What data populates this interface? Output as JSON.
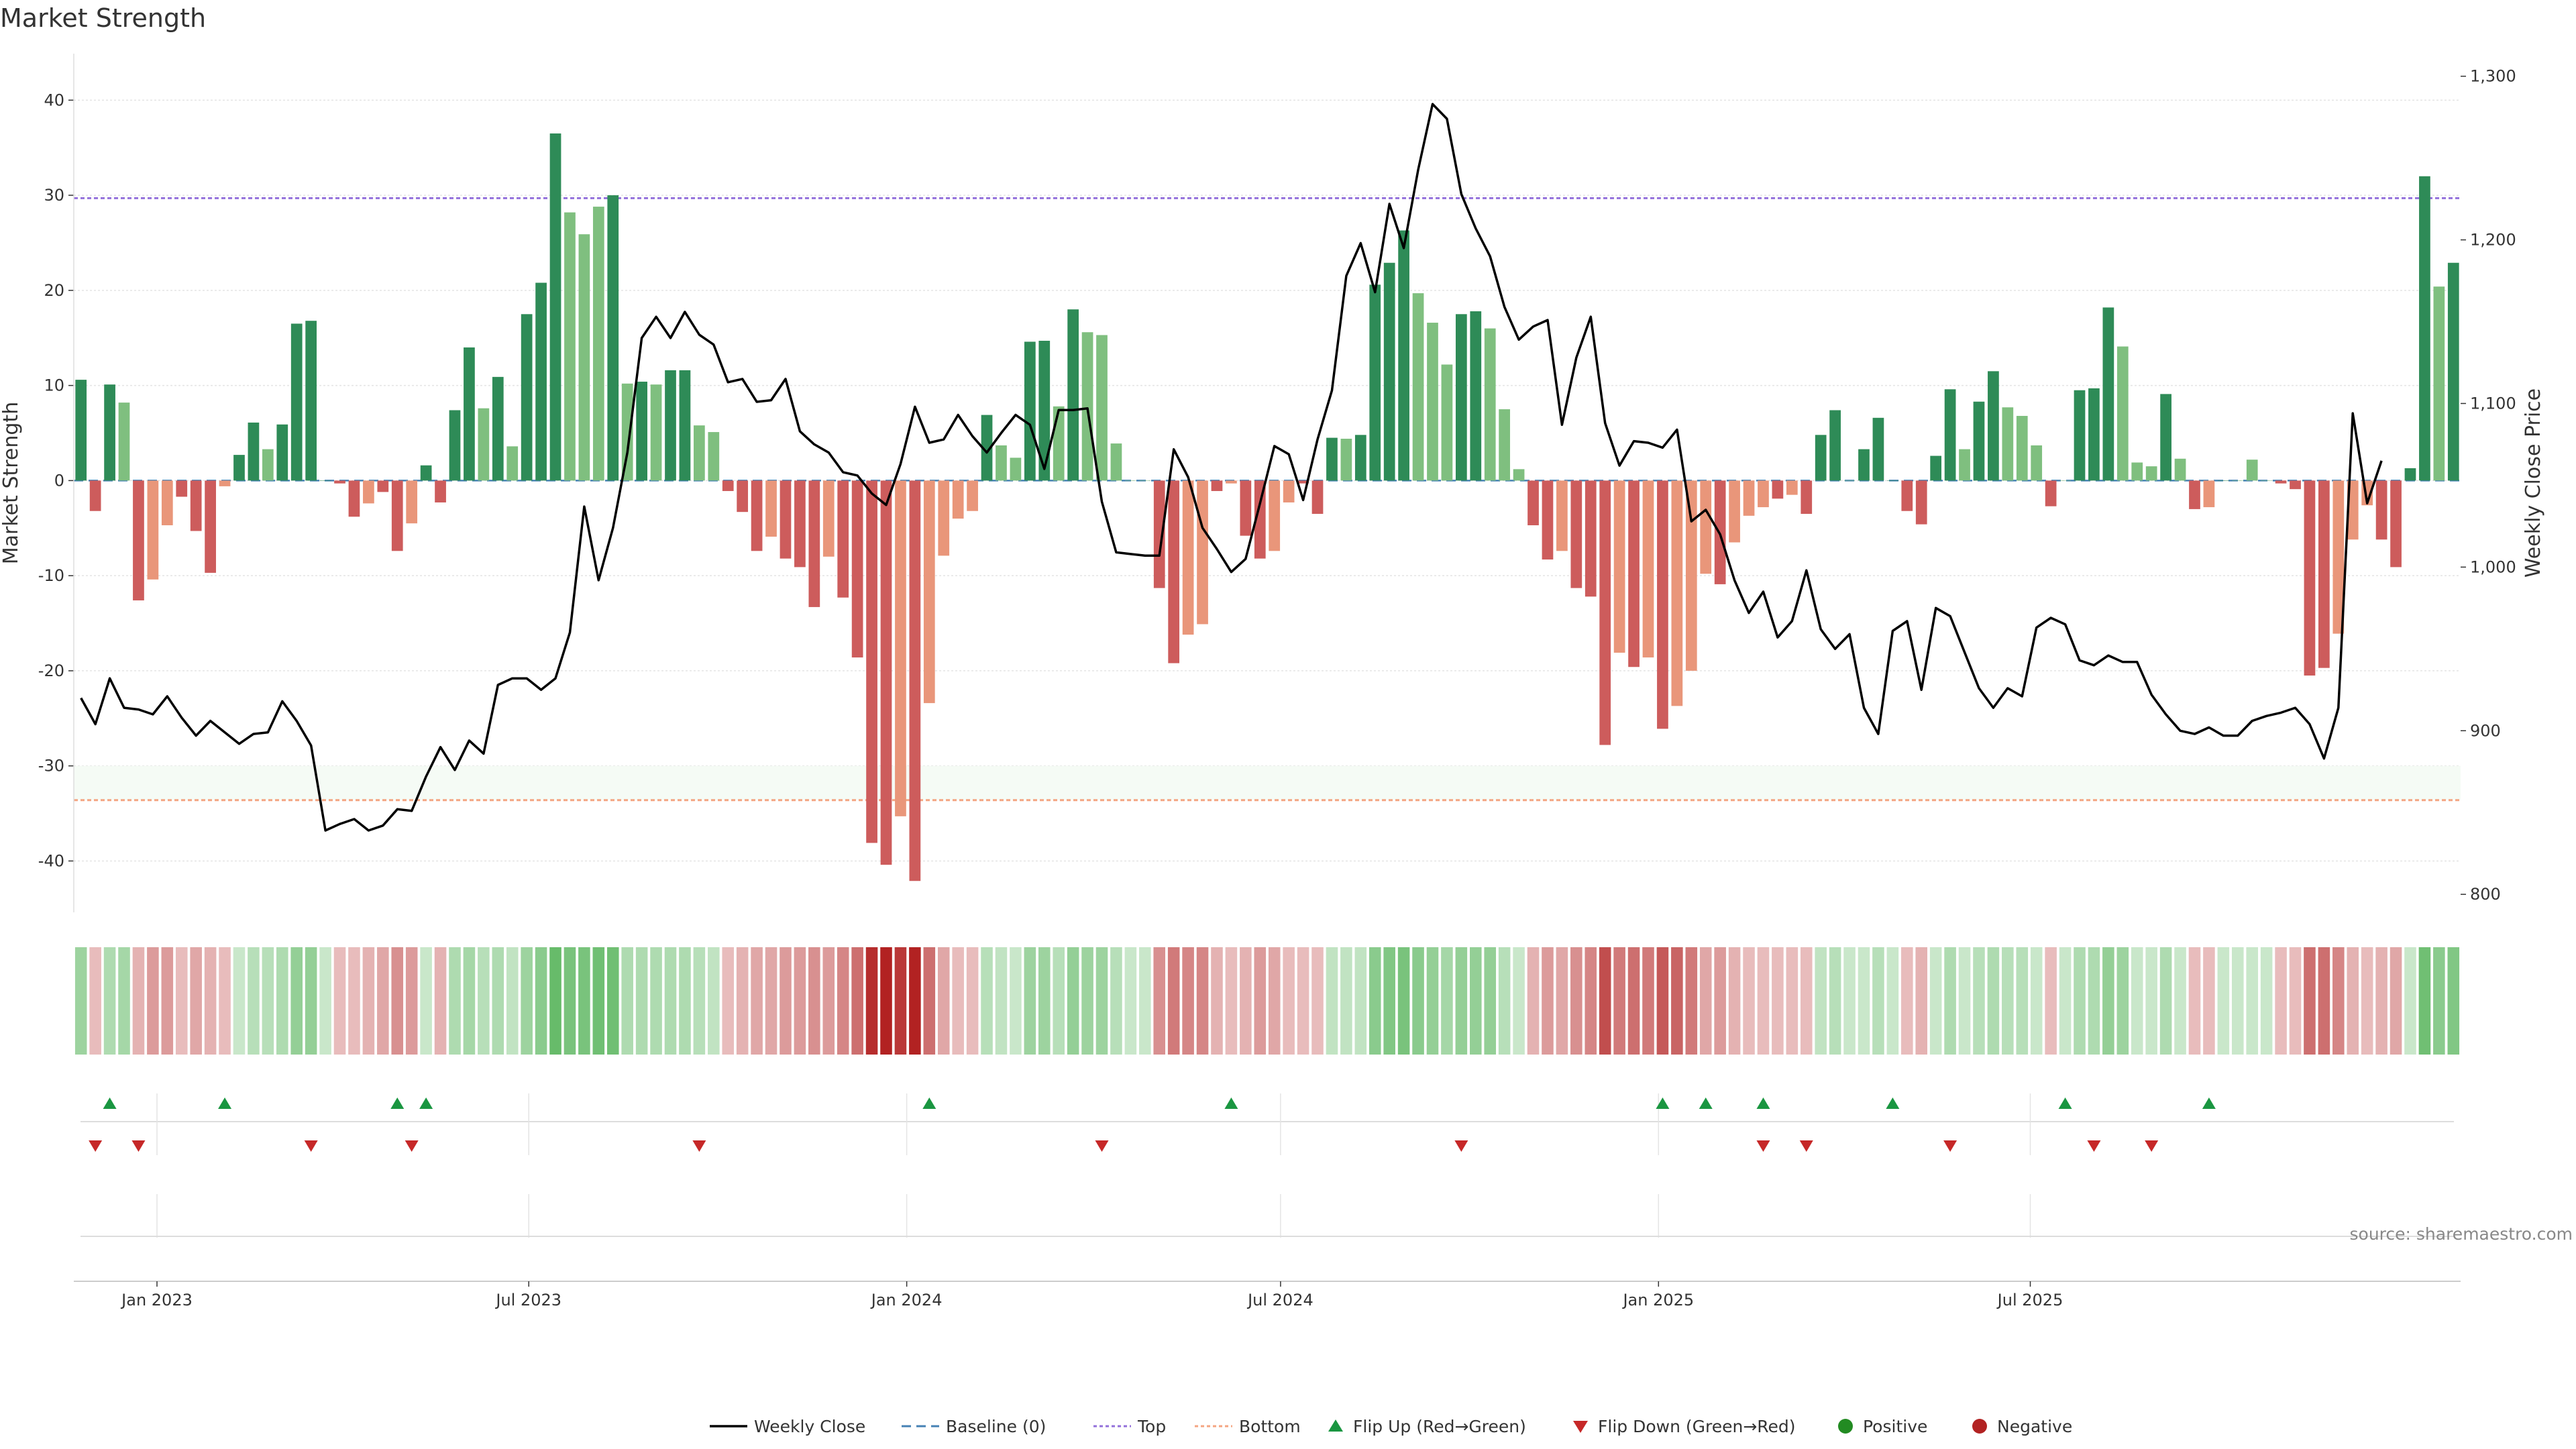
{
  "chart_data": {
    "type": "bar",
    "title": "Market Strength",
    "ylabel": "Market Strength",
    "y2label": "Weekly Close Price",
    "ylim": [
      -45.4,
      46.3
    ],
    "y2lim": [
      789,
      1322
    ],
    "yticks": [
      -40,
      -30,
      -20,
      -10,
      0,
      10,
      20,
      30,
      40
    ],
    "y2ticks": [
      800,
      900,
      1000,
      1100,
      1200,
      1300
    ],
    "y2tick_labels": [
      "800",
      "900",
      "1,000",
      "1,100",
      "1,200",
      "1,300"
    ],
    "x_start": "2022-11-25",
    "x_step_days": 7,
    "xticks": [
      {
        "label": "Jan 2023",
        "date": "2023-01-01"
      },
      {
        "label": "Jul 2023",
        "date": "2023-07-01"
      },
      {
        "label": "Jan 2024",
        "date": "2024-01-01"
      },
      {
        "label": "Jul 2024",
        "date": "2024-07-01"
      },
      {
        "label": "Jan 2025",
        "date": "2025-01-01"
      },
      {
        "label": "Jul 2025",
        "date": "2025-07-01"
      }
    ],
    "top_threshold": 29.7,
    "bottom_threshold": -33.6,
    "strength": [
      10.6,
      -3.2,
      10.1,
      8.2,
      -12.6,
      -10.4,
      -4.7,
      -1.7,
      -5.3,
      -9.7,
      -0.6,
      2.7,
      6.1,
      3.3,
      5.9,
      16.5,
      16.8,
      0,
      -0.3,
      -3.8,
      -2.4,
      -1.2,
      -7.4,
      -4.5,
      1.6,
      -2.3,
      7.4,
      14,
      7.6,
      10.9,
      3.6,
      17.5,
      20.8,
      36.5,
      28.2,
      25.9,
      28.8,
      30,
      10.2,
      10.4,
      10.1,
      11.6,
      11.6,
      5.8,
      5.1,
      -1.1,
      -3.3,
      -7.4,
      -5.9,
      -8.2,
      -9.1,
      -13.3,
      -8,
      -12.3,
      -18.6,
      -38.1,
      -40.4,
      -35.3,
      -42.1,
      -23.4,
      -7.9,
      -4,
      -3.2,
      6.9,
      3.7,
      2.4,
      14.6,
      14.7,
      7.8,
      18,
      15.6,
      15.3,
      3.9,
      0,
      0,
      -11.3,
      -19.2,
      -16.2,
      -15.1,
      -1.1,
      -0.3,
      -5.8,
      -8.2,
      -7.4,
      -2.3,
      -0.3,
      -3.5,
      4.5,
      4.4,
      4.8,
      20.6,
      22.9,
      26.3,
      19.7,
      16.6,
      12.2,
      17.5,
      17.8,
      16,
      7.5,
      1.2,
      -4.7,
      -8.3,
      -7.4,
      -11.3,
      -12.2,
      -27.8,
      -18.1,
      -19.6,
      -18.6,
      -26.1,
      -23.7,
      -20,
      -9.8,
      -10.9,
      -6.5,
      -3.7,
      -2.8,
      -1.9,
      -1.5,
      -3.5,
      4.8,
      7.4,
      0,
      3.3,
      6.6,
      0,
      -3.2,
      -4.6,
      2.6,
      9.6,
      3.3,
      8.3,
      11.5,
      7.7,
      6.8,
      3.7,
      -2.7,
      0,
      9.5,
      9.7,
      18.2,
      14.1,
      1.9,
      1.5,
      9.1,
      2.3,
      -3,
      -2.8,
      0,
      0,
      2.2,
      0,
      -0.3,
      -0.9,
      -20.5,
      -19.7,
      -16.1,
      -6.2,
      -2.6,
      -6.2,
      -9.1,
      1.3,
      32,
      20.4,
      22.9
    ],
    "strength_shade": [
      1,
      1,
      1,
      0,
      1,
      0,
      0,
      1,
      1,
      1,
      0,
      1,
      1,
      0,
      1,
      1,
      1,
      1,
      1,
      1,
      0,
      1,
      1,
      0,
      1,
      1,
      1,
      1,
      0,
      1,
      0,
      1,
      1,
      1,
      0,
      0,
      0,
      1,
      0,
      1,
      0,
      1,
      1,
      0,
      0,
      1,
      1,
      1,
      0,
      1,
      1,
      1,
      0,
      1,
      1,
      1,
      1,
      0,
      1,
      0,
      0,
      0,
      0,
      1,
      0,
      0,
      1,
      1,
      0,
      1,
      0,
      0,
      0,
      0,
      0,
      1,
      1,
      0,
      0,
      1,
      0,
      1,
      1,
      0,
      0,
      1,
      1,
      1,
      0,
      1,
      1,
      1,
      1,
      0,
      0,
      0,
      1,
      1,
      0,
      0,
      0,
      1,
      1,
      0,
      1,
      1,
      1,
      0,
      1,
      0,
      1,
      0,
      0,
      0,
      1,
      0,
      0,
      0,
      1,
      0,
      1,
      1,
      1,
      0,
      1,
      1,
      1,
      1,
      1,
      1,
      1,
      0,
      1,
      1,
      0,
      0,
      0,
      1,
      0,
      1,
      1,
      1,
      0,
      0,
      0,
      1,
      0,
      1,
      0,
      1,
      0,
      0,
      0,
      1,
      1,
      1,
      1,
      0,
      0,
      0,
      1,
      1,
      1,
      1,
      0,
      1
    ],
    "close": [
      920,
      904,
      932,
      914,
      913,
      910,
      921,
      908,
      897,
      906,
      899,
      892,
      898,
      899,
      918,
      906,
      891,
      839,
      843,
      846,
      839,
      842,
      852,
      851,
      872,
      890,
      876,
      894,
      886,
      928,
      932,
      932,
      925,
      932,
      960,
      1037,
      992,
      1024,
      1070,
      1140,
      1153,
      1140,
      1156,
      1142,
      1136,
      1113,
      1115,
      1101,
      1102,
      1115,
      1083,
      1075,
      1070,
      1058,
      1056,
      1045,
      1038,
      1063,
      1098,
      1076,
      1078,
      1093,
      1080,
      1070,
      1082,
      1093,
      1087,
      1060,
      1096,
      1096,
      1097,
      1040,
      1009,
      1008,
      1007,
      1007,
      1072,
      1055,
      1024,
      1011,
      997,
      1005,
      1039,
      1074,
      1069,
      1041,
      1078,
      1108,
      1178,
      1198,
      1168,
      1222,
      1195,
      1243,
      1283,
      1274,
      1228,
      1207,
      1190,
      1159,
      1139,
      1147,
      1151,
      1087,
      1128,
      1153,
      1088,
      1062,
      1077,
      1076,
      1073,
      1084,
      1028,
      1035,
      1020,
      992,
      972,
      985,
      957,
      967,
      998,
      962,
      950,
      959,
      914,
      898,
      961,
      967,
      925,
      975,
      970,
      948,
      926,
      914,
      926,
      921,
      963,
      969,
      965,
      943,
      940,
      946,
      942,
      942,
      922,
      910,
      900,
      898,
      902,
      897,
      897,
      906,
      909,
      911,
      914,
      904,
      883,
      914,
      1094,
      1039,
      1065
    ],
    "heat_shade": [
      0.55,
      0.3,
      0.45,
      0.5,
      0.35,
      0.45,
      0.45,
      0.3,
      0.4,
      0.35,
      0.3,
      0.3,
      0.4,
      0.4,
      0.45,
      0.6,
      0.6,
      0.3,
      0.3,
      0.3,
      0.35,
      0.4,
      0.5,
      0.45,
      0.3,
      0.35,
      0.45,
      0.5,
      0.4,
      0.45,
      0.35,
      0.55,
      0.65,
      0.85,
      0.75,
      0.75,
      0.8,
      0.8,
      0.45,
      0.45,
      0.45,
      0.45,
      0.45,
      0.4,
      0.35,
      0.3,
      0.35,
      0.4,
      0.4,
      0.45,
      0.45,
      0.5,
      0.45,
      0.55,
      0.65,
      0.95,
      1.0,
      0.9,
      1.0,
      0.65,
      0.4,
      0.3,
      0.3,
      0.4,
      0.35,
      0.3,
      0.55,
      0.55,
      0.4,
      0.6,
      0.55,
      0.55,
      0.4,
      0.3,
      0.3,
      0.5,
      0.6,
      0.55,
      0.55,
      0.35,
      0.3,
      0.35,
      0.45,
      0.4,
      0.3,
      0.3,
      0.3,
      0.35,
      0.35,
      0.35,
      0.65,
      0.7,
      0.75,
      0.65,
      0.6,
      0.5,
      0.6,
      0.6,
      0.6,
      0.4,
      0.3,
      0.35,
      0.45,
      0.4,
      0.5,
      0.55,
      0.8,
      0.6,
      0.65,
      0.6,
      0.75,
      0.7,
      0.6,
      0.4,
      0.45,
      0.35,
      0.3,
      0.3,
      0.3,
      0.3,
      0.3,
      0.35,
      0.4,
      0.3,
      0.3,
      0.4,
      0.3,
      0.3,
      0.35,
      0.3,
      0.45,
      0.3,
      0.4,
      0.45,
      0.4,
      0.4,
      0.3,
      0.3,
      0.3,
      0.45,
      0.45,
      0.6,
      0.55,
      0.3,
      0.3,
      0.45,
      0.3,
      0.3,
      0.3,
      0.3,
      0.3,
      0.3,
      0.3,
      0.3,
      0.3,
      0.65,
      0.65,
      0.55,
      0.35,
      0.3,
      0.35,
      0.4,
      0.3,
      0.8,
      0.65,
      0.7
    ],
    "flip_up_weeks": [
      2,
      10,
      22,
      24,
      59,
      80,
      110,
      113,
      117,
      126,
      138,
      148
    ],
    "flip_down_weeks": [
      1,
      4,
      16,
      23,
      43,
      71,
      96,
      117,
      120,
      130,
      140,
      144
    ],
    "legend": [
      "Weekly Close",
      "Baseline (0)",
      "Top",
      "Bottom",
      "Flip Up (Red→Green)",
      "Flip Down (Green→Red)",
      "Positive",
      "Negative"
    ],
    "source": "source: sharemaestro.com",
    "colors": {
      "green_dark": "#2e8b57",
      "green_light": "#7fbf7f",
      "red_dark": "#cd5c5c",
      "red_light": "#e9967a",
      "top_line": "#9370db",
      "bottom_line": "#f4a582",
      "baseline": "#4682b4",
      "close_line": "#000000",
      "flip_up": "#1a9641",
      "flip_down": "#c62828",
      "positive": "#228b22",
      "negative": "#b22222",
      "heat_green": "#4caf50",
      "heat_red": "#b22222"
    }
  }
}
